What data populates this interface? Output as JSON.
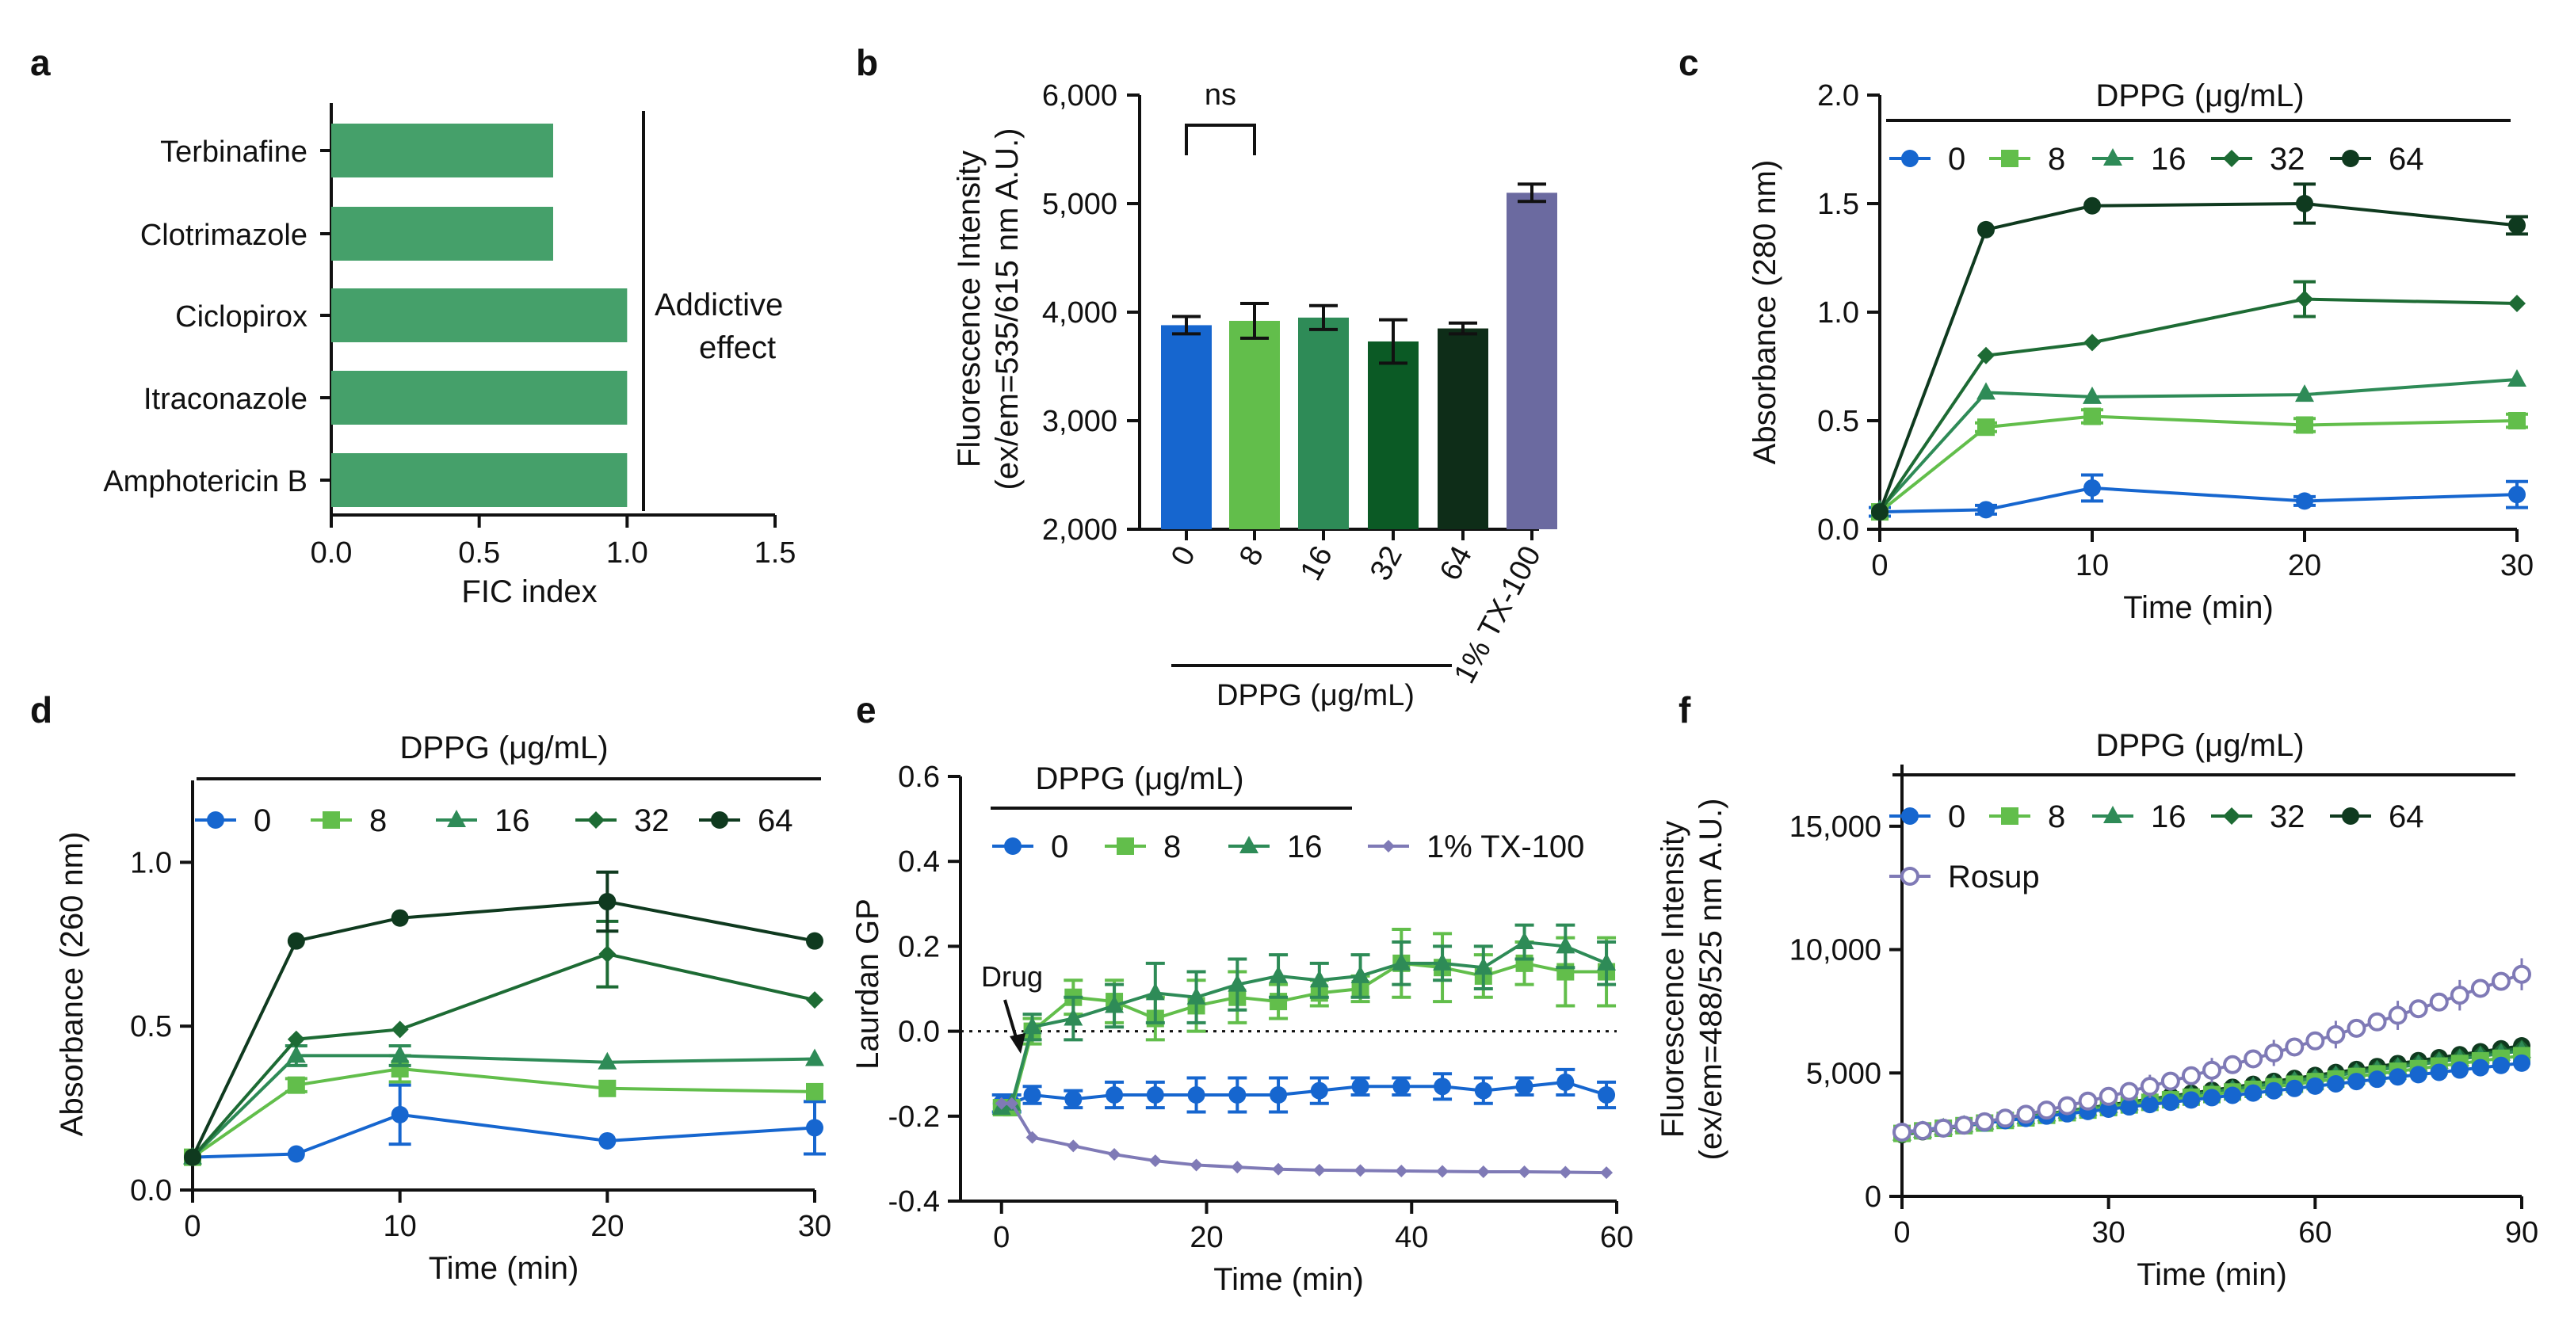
{
  "figure": {
    "description_panels": [
      "a",
      "b",
      "c",
      "d",
      "e",
      "f"
    ]
  },
  "colors": {
    "c0": "#1666cf",
    "c8": "#62be4b",
    "c16": "#2e8b57",
    "c32": "#1d6b34",
    "c64": "#0f3a1f",
    "bar_a": "#45a06a",
    "tx": "#6b6aa0",
    "rosup": "#7f7ab6",
    "bar32": "#0b5a25",
    "bar64": "#0e2d18"
  },
  "chart_data": [
    {
      "panel": "a",
      "type": "bar",
      "orientation": "horizontal",
      "categories": [
        "Terbinafine",
        "Clotrimazole",
        "Ciclopirox",
        "Itraconazole",
        "Amphotericin B"
      ],
      "values": [
        0.75,
        0.75,
        1.0,
        1.0,
        1.0
      ],
      "xlabel": "FIC index",
      "xlim": [
        0,
        1.5
      ],
      "xticks": [
        "0.0",
        "0.5",
        "1.0",
        "1.5"
      ],
      "annotation": [
        "Addictive",
        "effect"
      ]
    },
    {
      "panel": "b",
      "type": "bar",
      "categories": [
        "0",
        "8",
        "16",
        "32",
        "64",
        "1% TX-100"
      ],
      "values": [
        3880,
        3920,
        3950,
        3730,
        3850,
        5100
      ],
      "errors": [
        80,
        160,
        110,
        200,
        50,
        80
      ],
      "ylabel": [
        "Fluorescence Intensity",
        "(ex/em=535/615 nm A.U.)"
      ],
      "ylim": [
        2000,
        6000
      ],
      "yticks": [
        "2,000",
        "3,000",
        "4,000",
        "5,000",
        "6,000"
      ],
      "group_label": "DPPG (μg/mL)",
      "significance": "ns"
    },
    {
      "panel": "c",
      "type": "line",
      "x": [
        0,
        5,
        10,
        20,
        30
      ],
      "series": [
        {
          "name": "0",
          "values": [
            0.08,
            0.09,
            0.19,
            0.13,
            0.16
          ],
          "errors": [
            0.02,
            0.02,
            0.06,
            0.02,
            0.06
          ]
        },
        {
          "name": "8",
          "values": [
            0.08,
            0.47,
            0.52,
            0.48,
            0.5
          ],
          "errors": [
            0.0,
            0.02,
            0.03,
            0.03,
            0.03
          ]
        },
        {
          "name": "16",
          "values": [
            0.09,
            0.63,
            0.61,
            0.62,
            0.69
          ],
          "errors": [
            0.0,
            0.01,
            0.01,
            0.01,
            0.01
          ]
        },
        {
          "name": "32",
          "values": [
            0.08,
            0.8,
            0.86,
            1.06,
            1.04
          ],
          "errors": [
            0.0,
            0.01,
            0.01,
            0.08,
            0.01
          ]
        },
        {
          "name": "64",
          "values": [
            0.08,
            1.38,
            1.49,
            1.5,
            1.4
          ],
          "errors": [
            0.0,
            0.01,
            0.01,
            0.09,
            0.04
          ]
        }
      ],
      "xlabel": "Time (min)",
      "ylabel": "Absorbance (280 nm)",
      "xlim": [
        0,
        30
      ],
      "ylim": [
        0,
        2.0
      ],
      "xticks": [
        "0",
        "10",
        "20",
        "30"
      ],
      "yticks": [
        "0.0",
        "0.5",
        "1.0",
        "1.5",
        "2.0"
      ],
      "legend_title": "DPPG (μg/mL)"
    },
    {
      "panel": "d",
      "type": "line",
      "x": [
        0,
        5,
        10,
        20,
        30
      ],
      "series": [
        {
          "name": "0",
          "values": [
            0.1,
            0.11,
            0.23,
            0.15,
            0.19
          ],
          "errors": [
            0.01,
            0.01,
            0.09,
            0.01,
            0.08
          ]
        },
        {
          "name": "8",
          "values": [
            0.1,
            0.32,
            0.37,
            0.31,
            0.3
          ],
          "errors": [
            0.0,
            0.02,
            0.04,
            0.01,
            0.01
          ]
        },
        {
          "name": "16",
          "values": [
            0.1,
            0.41,
            0.41,
            0.39,
            0.4
          ],
          "errors": [
            0.0,
            0.03,
            0.03,
            0.01,
            0.01
          ]
        },
        {
          "name": "32",
          "values": [
            0.1,
            0.46,
            0.49,
            0.72,
            0.58
          ],
          "errors": [
            0.0,
            0.01,
            0.01,
            0.1,
            0.01
          ]
        },
        {
          "name": "64",
          "values": [
            0.1,
            0.76,
            0.83,
            0.88,
            0.76
          ],
          "errors": [
            0.0,
            0.01,
            0.01,
            0.09,
            0.01
          ]
        }
      ],
      "xlabel": "Time (min)",
      "ylabel": "Absorbance (260 nm)",
      "xlim": [
        0,
        30
      ],
      "ylim": [
        0,
        1.25
      ],
      "xticks": [
        "0",
        "10",
        "20",
        "30"
      ],
      "yticks": [
        "0.0",
        "0.5",
        "1.0"
      ],
      "legend_title": "DPPG (μg/mL)"
    },
    {
      "panel": "e",
      "type": "line",
      "x": [
        0,
        1,
        3,
        7,
        11,
        15,
        19,
        23,
        27,
        31,
        35,
        39,
        43,
        47,
        51,
        55,
        59
      ],
      "series": [
        {
          "name": "0",
          "values": [
            -0.17,
            -0.17,
            -0.15,
            -0.16,
            -0.15,
            -0.15,
            -0.15,
            -0.15,
            -0.15,
            -0.14,
            -0.13,
            -0.13,
            -0.13,
            -0.14,
            -0.13,
            -0.12,
            -0.15
          ],
          "errors": [
            0.02,
            0.02,
            0.02,
            0.02,
            0.03,
            0.03,
            0.04,
            0.04,
            0.04,
            0.03,
            0.02,
            0.02,
            0.03,
            0.03,
            0.02,
            0.03,
            0.03
          ]
        },
        {
          "name": "8",
          "values": [
            -0.18,
            -0.18,
            0.0,
            0.08,
            0.07,
            0.03,
            0.06,
            0.08,
            0.07,
            0.09,
            0.1,
            0.16,
            0.15,
            0.13,
            0.16,
            0.14,
            0.14
          ],
          "errors": [
            0.01,
            0.01,
            0.03,
            0.04,
            0.05,
            0.05,
            0.06,
            0.06,
            0.04,
            0.03,
            0.03,
            0.08,
            0.08,
            0.05,
            0.05,
            0.08,
            0.08
          ]
        },
        {
          "name": "16",
          "values": [
            -0.18,
            -0.17,
            0.01,
            0.03,
            0.06,
            0.09,
            0.08,
            0.11,
            0.13,
            0.12,
            0.13,
            0.16,
            0.16,
            0.15,
            0.21,
            0.2,
            0.16
          ],
          "errors": [
            0.01,
            0.01,
            0.03,
            0.05,
            0.05,
            0.07,
            0.06,
            0.06,
            0.05,
            0.04,
            0.05,
            0.05,
            0.04,
            0.05,
            0.04,
            0.05,
            0.05
          ]
        },
        {
          "name": "1% TX-100",
          "values": [
            -0.17,
            -0.17,
            -0.25,
            -0.27,
            -0.29,
            -0.305,
            -0.315,
            -0.32,
            -0.325,
            -0.327,
            -0.328,
            -0.329,
            -0.33,
            -0.331,
            -0.331,
            -0.332,
            -0.333
          ],
          "errors": []
        }
      ],
      "xlabel": "Time (min)",
      "ylabel": "Laurdan GP",
      "xlim": [
        -4,
        60
      ],
      "ylim": [
        -0.4,
        0.6
      ],
      "xticks": [
        "0",
        "20",
        "40",
        "60"
      ],
      "yticks": [
        "-0.4",
        "-0.2",
        "0.0",
        "0.2",
        "0.4",
        "0.6"
      ],
      "legend_title": "DPPG (μg/mL)",
      "annotation": "Drug"
    },
    {
      "panel": "f",
      "type": "line",
      "x_start": 0,
      "x_end": 90,
      "x_step": 3,
      "series": [
        {
          "name": "0",
          "start": 2600,
          "end": 5400
        },
        {
          "name": "8",
          "start": 2550,
          "end": 5700
        },
        {
          "name": "16",
          "start": 2550,
          "end": 5900
        },
        {
          "name": "32",
          "start": 2500,
          "end": 6000
        },
        {
          "name": "64",
          "start": 2500,
          "end": 6100
        },
        {
          "name": "Rosup",
          "start": 2600,
          "end": 9000
        }
      ],
      "xlabel": "Time (min)",
      "ylabel": [
        "Fluorescence Intensity",
        "(ex/em=488/525 nm A.U.)"
      ],
      "xlim": [
        0,
        90
      ],
      "ylim": [
        0,
        17500
      ],
      "xticks": [
        "0",
        "30",
        "60",
        "90"
      ],
      "yticks": [
        "0",
        "5,000",
        "10,000",
        "15,000"
      ],
      "legend_title": "DPPG (μg/mL)"
    }
  ]
}
